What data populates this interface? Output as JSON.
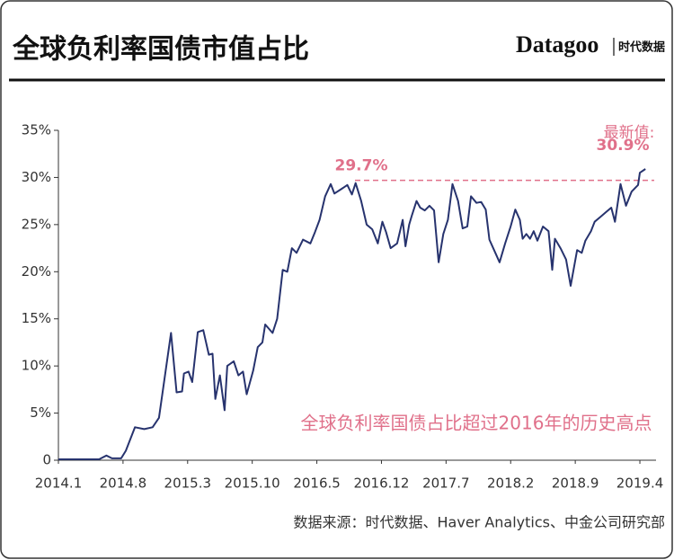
{
  "chart_data": {
    "type": "line",
    "title": "全球负利率国债市值占比",
    "brand": "Datagoo",
    "brand_sub": "时代数据",
    "source": "数据来源：时代数据、Haver Analytics、中金公司研究部",
    "note": "全球负利率国债占比超过2016年的历史高点",
    "reference_line": {
      "value": 29.7,
      "label": "29.7%"
    },
    "latest_title": "最新值:",
    "latest": {
      "value": 30.9,
      "label": "30.9%"
    },
    "color": "#27336e",
    "annotation_color": "#e0708a",
    "xlim": [
      0,
      64
    ],
    "ylim": [
      0,
      35
    ],
    "xticks": [
      {
        "value": 0,
        "label": "2014.1"
      },
      {
        "value": 7,
        "label": "2014.8"
      },
      {
        "value": 14,
        "label": "2015.3"
      },
      {
        "value": 21,
        "label": "2015.10"
      },
      {
        "value": 28,
        "label": "2016.5"
      },
      {
        "value": 35,
        "label": "2016.12"
      },
      {
        "value": 42,
        "label": "2017.7"
      },
      {
        "value": 49,
        "label": "2018.2"
      },
      {
        "value": 56,
        "label": "2018.9"
      },
      {
        "value": 63,
        "label": "2019.4"
      }
    ],
    "yticks": [
      {
        "value": 0,
        "label": "0"
      },
      {
        "value": 5,
        "label": "5%"
      },
      {
        "value": 10,
        "label": "10%"
      },
      {
        "value": 15,
        "label": "15%"
      },
      {
        "value": 20,
        "label": "20%"
      },
      {
        "value": 25,
        "label": "25%"
      },
      {
        "value": 30,
        "label": "30%"
      },
      {
        "value": 35,
        "label": "35%"
      }
    ],
    "x": [
      0,
      1.5,
      3.4,
      4.4,
      5.2,
      5.8,
      6.8,
      7.3,
      8.3,
      9.3,
      10.2,
      10.9,
      12.2,
      12.8,
      13.4,
      13.6,
      14.1,
      14.5,
      15.1,
      15.7,
      16.3,
      16.7,
      17.0,
      17.5,
      18.0,
      18.3,
      19.0,
      19.5,
      20.0,
      20.4,
      21.1,
      21.6,
      22.1,
      22.4,
      23.2,
      23.7,
      24.3,
      24.8,
      25.3,
      25.8,
      26.5,
      27.3,
      27.8,
      28.3,
      28.9,
      29.5,
      29.9,
      30.7,
      31.3,
      31.8,
      32.2,
      32.8,
      33.4,
      34.0,
      34.6,
      35.1,
      35.5,
      36.0,
      36.7,
      37.3,
      37.6,
      38.0,
      38.3,
      38.8,
      39.2,
      39.7,
      40.2,
      40.7,
      41.2,
      41.7,
      42.2,
      42.7,
      43.3,
      43.8,
      44.3,
      44.7,
      45.3,
      45.8,
      46.3,
      46.7,
      47.2,
      47.8,
      48.4,
      49.0,
      49.5,
      50.0,
      50.3,
      50.7,
      51.1,
      51.5,
      51.9,
      52.5,
      53.1,
      53.5,
      53.8,
      54.4,
      55.0,
      55.5,
      56.2,
      56.7,
      57.1,
      57.7,
      58.1,
      58.7,
      59.3,
      59.9,
      60.3,
      60.9,
      61.5,
      62.1,
      62.8,
      63.0,
      63.6
    ],
    "values": [
      0.1,
      0.1,
      0.1,
      0.1,
      0.5,
      0.2,
      0.2,
      1.0,
      3.5,
      3.3,
      3.5,
      4.5,
      13.5,
      7.2,
      7.3,
      9.2,
      9.4,
      8.3,
      13.6,
      13.8,
      11.2,
      11.3,
      6.5,
      9,
      5.3,
      10,
      10.5,
      9,
      9.4,
      7,
      9.5,
      12,
      12.5,
      14.4,
      13.5,
      15,
      20.2,
      20,
      22.5,
      22,
      23.4,
      23,
      24.2,
      25.5,
      28,
      29.3,
      28.3,
      28.8,
      29.2,
      28.2,
      29.4,
      27.5,
      25,
      24.5,
      23,
      25.3,
      24.2,
      22.5,
      23,
      25.5,
      22.7,
      25,
      26,
      27.5,
      26.8,
      26.5,
      27,
      26.5,
      21,
      24,
      25.5,
      29.3,
      27.5,
      24.6,
      24.8,
      28,
      27.3,
      27.4,
      26.6,
      23.4,
      22.3,
      21,
      23,
      24.8,
      26.6,
      25.5,
      23.5,
      24,
      23.5,
      24.3,
      23.3,
      24.8,
      24.3,
      20.2,
      23.5,
      22.5,
      21.3,
      18.5,
      22.3,
      22,
      23.3,
      24.3,
      25.3,
      25.8,
      26.3,
      26.8,
      25.3,
      29.3,
      27,
      28.5,
      29.2,
      30.5,
      30.9
    ]
  }
}
